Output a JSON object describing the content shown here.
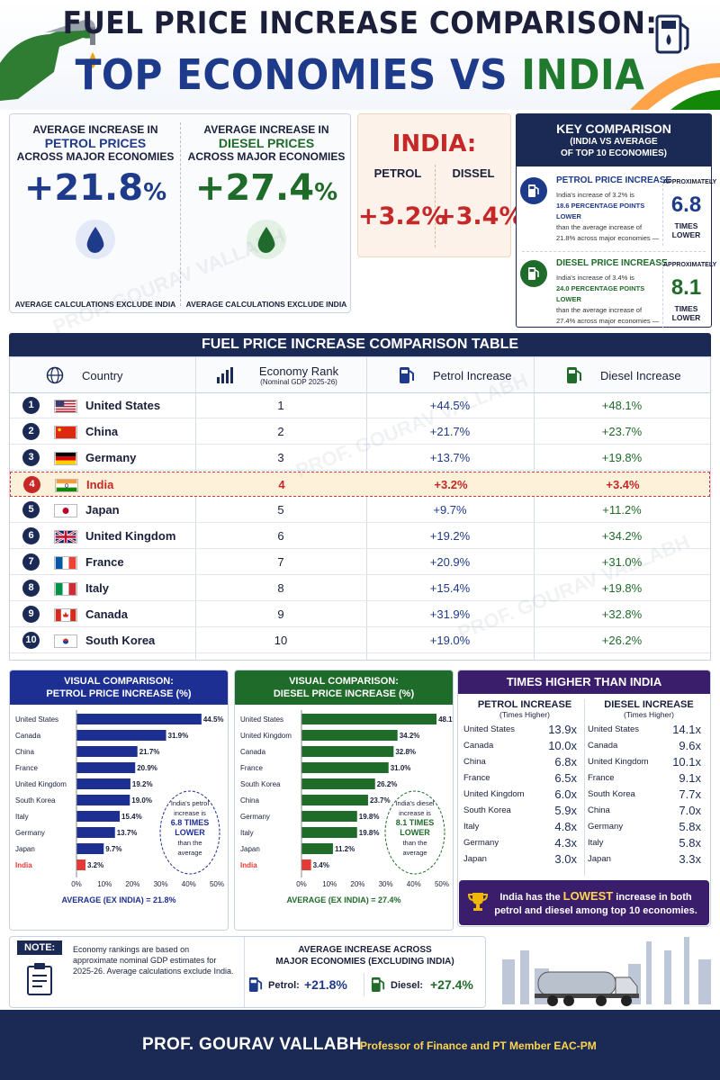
{
  "header": {
    "title_line1": "FUEL PRICE INCREASE COMPARISON:",
    "title_part_a": "TOP ECONOMIES VS",
    "title_part_b": "INDIA"
  },
  "avg_panel": {
    "petrol": {
      "h1": "AVERAGE INCREASE IN",
      "h2": "PETROL PRICES",
      "h3": "ACROSS MAJOR ECONOMIES",
      "value": "+21.8",
      "unit": "%",
      "foot": "AVERAGE CALCULATIONS EXCLUDE INDIA"
    },
    "diesel": {
      "h1": "AVERAGE INCREASE IN",
      "h2": "DIESEL PRICES",
      "h3": "ACROSS MAJOR ECONOMIES",
      "value": "+27.4",
      "unit": "%",
      "foot": "AVERAGE CALCULATIONS EXCLUDE INDIA"
    }
  },
  "india_panel": {
    "title": "INDIA:",
    "petrol_label": "PETROL",
    "diesel_label": "DISSEL",
    "petrol_value": "+3.2%",
    "diesel_value": "+3.4%"
  },
  "key": {
    "title": "KEY COMPARISON",
    "subtitle1": "(INDIA VS AVERAGE",
    "subtitle2": "OF TOP 10 ECONOMIES)",
    "petrol": {
      "title": "PETROL PRICE INCREASE",
      "t1": "India's increase of 3.2% is",
      "t2": "18.6 PERCENTAGE POINTS LOWER",
      "t3": "than the average increase of",
      "t4": "21.8% across major economies —",
      "approx": "APPROXIMATELY",
      "num": "6.8",
      "lower": "TIMES LOWER"
    },
    "diesel": {
      "title": "DIESEL PRICE INCREASE",
      "t1": "India's increase of 3.4% is",
      "t2": "24.0 PERCENTAGE POINTS LOWER",
      "t3": "than the average increase of",
      "t4": "27.4% across major economies —",
      "approx": "APPROXIMATELY",
      "num": "8.1",
      "lower": "TIMES LOWER"
    }
  },
  "table": {
    "title": "FUEL PRICE INCREASE COMPARISON TABLE",
    "headers": {
      "country": "Country",
      "rank": "Economy Rank",
      "rank_sub": "(Nominal GDP 2025-26)",
      "petrol": "Petrol Increase",
      "diesel": "Diesel Increase"
    },
    "rows": [
      {
        "n": "1",
        "country": "United States",
        "rank": "1",
        "petrol": "+44.5%",
        "diesel": "+48.1%"
      },
      {
        "n": "2",
        "country": "China",
        "rank": "2",
        "petrol": "+21.7%",
        "diesel": "+23.7%"
      },
      {
        "n": "3",
        "country": "Germany",
        "rank": "3",
        "petrol": "+13.7%",
        "diesel": "+19.8%"
      },
      {
        "n": "4",
        "country": "India",
        "rank": "4",
        "petrol": "+3.2%",
        "diesel": "+3.4%"
      },
      {
        "n": "5",
        "country": "Japan",
        "rank": "5",
        "petrol": "+9.7%",
        "diesel": "+11.2%"
      },
      {
        "n": "6",
        "country": "United Kingdom",
        "rank": "6",
        "petrol": "+19.2%",
        "diesel": "+34.2%"
      },
      {
        "n": "7",
        "country": "France",
        "rank": "7",
        "petrol": "+20.9%",
        "diesel": "+31.0%"
      },
      {
        "n": "8",
        "country": "Italy",
        "rank": "8",
        "petrol": "+15.4%",
        "diesel": "+19.8%"
      },
      {
        "n": "9",
        "country": "Canada",
        "rank": "9",
        "petrol": "+31.9%",
        "diesel": "+32.8%"
      },
      {
        "n": "10",
        "country": "South Korea",
        "rank": "10",
        "petrol": "+19.0%",
        "diesel": "+26.2%"
      }
    ]
  },
  "chart_data": [
    {
      "type": "bar",
      "title": "VISUAL COMPARISON:",
      "subtitle": "PETROL PRICE INCREASE (%)",
      "categories": [
        "United States",
        "Canada",
        "China",
        "France",
        "United Kingdom",
        "South Korea",
        "Italy",
        "Germany",
        "Japan",
        "India"
      ],
      "values": [
        44.5,
        31.9,
        21.7,
        20.9,
        19.2,
        19.0,
        15.4,
        13.7,
        9.7,
        3.2
      ],
      "labels": [
        "44.5%",
        "31.9%",
        "21.7%",
        "20.9%",
        "19.2%",
        "19.0%",
        "15.4%",
        "13.7%",
        "9.7%",
        "3.2%"
      ],
      "xticks": [
        "0%",
        "10%",
        "20%",
        "30%",
        "40%",
        "50%"
      ],
      "xlim": [
        0,
        50
      ],
      "footer": "AVERAGE (EX INDIA) = 21.8%",
      "callout": [
        "India's petrol",
        "increase is",
        "6.8 TIMES",
        "LOWER",
        "than the",
        "average"
      ],
      "color": "#1e2f94",
      "highlight_color": "#e53935"
    },
    {
      "type": "bar",
      "title": "VISUAL COMPARISON:",
      "subtitle": "DIESEL PRICE INCREASE (%)",
      "categories": [
        "United States",
        "United Kingdom",
        "Canada",
        "France",
        "South Korea",
        "China",
        "Germany",
        "Italy",
        "Japan",
        "India"
      ],
      "values": [
        48.1,
        34.2,
        32.8,
        31.0,
        26.2,
        23.7,
        19.8,
        19.8,
        11.2,
        3.4
      ],
      "labels": [
        "48.1%",
        "34.2%",
        "32.8%",
        "31.0%",
        "26.2%",
        "23.7%",
        "19.8%",
        "19.8%",
        "11.2%",
        "3.4%"
      ],
      "xticks": [
        "0%",
        "10%",
        "20%",
        "30%",
        "40%",
        "50%"
      ],
      "xlim": [
        0,
        50
      ],
      "footer": "AVERAGE (EX INDIA) = 27.4%",
      "callout": [
        "India's diesel",
        "increase is",
        "8.1 TIMES",
        "LOWER",
        "than the",
        "average"
      ],
      "color": "#1f6b2a",
      "highlight_color": "#e53935"
    }
  ],
  "times": {
    "title": "TIMES HIGHER THAN INDIA",
    "petrol": {
      "h": "PETROL INCREASE",
      "s": "(Times Higher)",
      "items": [
        [
          "United States",
          "13.9x"
        ],
        [
          "Canada",
          "10.0x"
        ],
        [
          "China",
          "6.8x"
        ],
        [
          "France",
          "6.5x"
        ],
        [
          "United Kingdom",
          "6.0x"
        ],
        [
          "South Korea",
          "5.9x"
        ],
        [
          "Italy",
          "4.8x"
        ],
        [
          "Germany",
          "4.3x"
        ],
        [
          "Japan",
          "3.0x"
        ]
      ]
    },
    "diesel": {
      "h": "DIESEL INCREASE",
      "s": "(Times Higher)",
      "items": [
        [
          "United States",
          "14.1x"
        ],
        [
          "Canada",
          "9.6x"
        ],
        [
          "United Kingdom",
          "10.1x"
        ],
        [
          "France",
          "9.1x"
        ],
        [
          "South Korea",
          "7.7x"
        ],
        [
          "China",
          "7.0x"
        ],
        [
          "Germany",
          "5.8x"
        ],
        [
          "Italy",
          "5.8x"
        ],
        [
          "Japan",
          "3.3x"
        ]
      ]
    },
    "banner_a": "India has the ",
    "banner_b": "LOWEST",
    "banner_c": " increase in both petrol and diesel among top 10 economies."
  },
  "note": {
    "label": "NOTE:",
    "text": "Economy rankings are based on approximate nominal GDP estimates for 2025-26. Average calculations exclude India.",
    "avg_h1": "AVERAGE INCREASE ACROSS",
    "avg_h2": "MAJOR ECONOMIES (EXCLUDING INDIA)",
    "petrol_label": "Petrol:",
    "petrol_val": "+21.8%",
    "diesel_label": "Diesel:",
    "diesel_val": "+27.4%"
  },
  "footer": {
    "name": "PROF. GOURAV VALLABH",
    "role": "Professor of Finance and PT Member EAC-PM"
  },
  "watermark": "PROF. GOURAV VALLABH",
  "colors": {
    "navy": "#1b2a55",
    "blue": "#1e3a8a",
    "green": "#1f6b2a",
    "red": "#c62828",
    "purple": "#3a1d6b"
  }
}
